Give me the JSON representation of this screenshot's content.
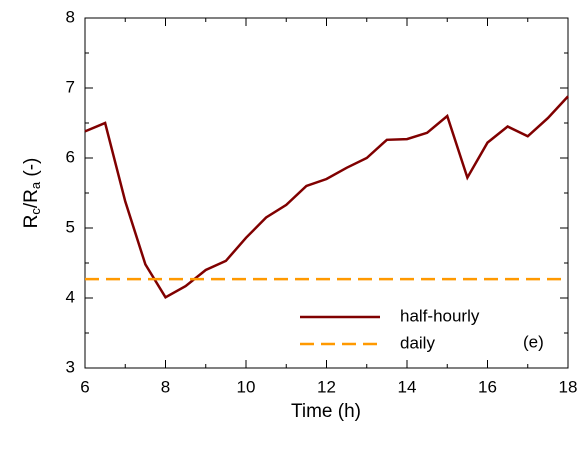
{
  "chart_data": {
    "type": "line",
    "x_label": "Time (h)",
    "y_label": [
      "R",
      "c",
      "/R",
      "a",
      " (-)"
    ],
    "annotation": "(e)",
    "x": [
      6,
      6.5,
      7,
      7.5,
      8,
      8.5,
      9,
      9.5,
      10,
      10.5,
      11,
      11.5,
      12,
      12.5,
      13,
      13.5,
      14,
      14.5,
      15,
      15.5,
      16,
      16.5,
      17,
      17.5,
      18
    ],
    "series": [
      {
        "name": "half-hourly",
        "color": "#800000",
        "dash": false,
        "values": [
          6.38,
          6.5,
          5.38,
          4.48,
          4.01,
          4.17,
          4.4,
          4.53,
          4.86,
          5.15,
          5.33,
          5.6,
          5.7,
          5.86,
          6.0,
          6.26,
          6.27,
          6.36,
          6.6,
          5.72,
          6.22,
          6.45,
          6.31,
          6.57,
          6.88
        ]
      },
      {
        "name": "daily",
        "color": "#ff9900",
        "dash": true,
        "x": [
          6,
          18
        ],
        "values": [
          4.27,
          4.27
        ]
      }
    ],
    "xlim": [
      6,
      18
    ],
    "ylim": [
      3,
      8
    ],
    "xticks": [
      6,
      8,
      10,
      12,
      14,
      16,
      18
    ],
    "yticks": [
      3,
      4,
      5,
      6,
      7,
      8
    ],
    "x_minor_ticks": [
      7,
      9,
      11,
      13,
      15,
      17
    ],
    "y_minor_ticks": [
      3.5,
      4.5,
      5.5,
      6.5,
      7.5
    ],
    "grid": false
  }
}
